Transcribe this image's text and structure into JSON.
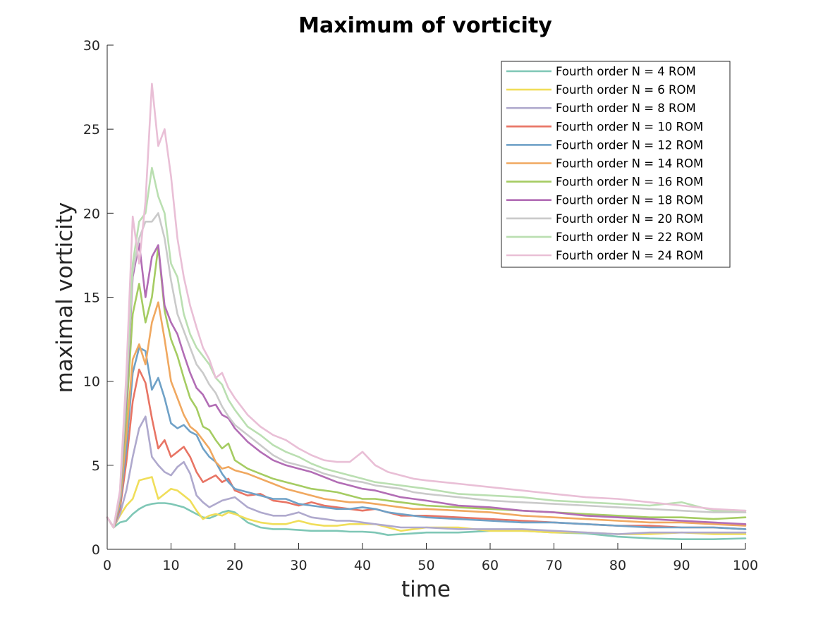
{
  "chart_data": {
    "type": "line",
    "title": "Maximum of vorticity",
    "xlabel": "time",
    "ylabel": "maximal vorticity",
    "xlim": [
      0,
      100
    ],
    "ylim": [
      0,
      30
    ],
    "xticks": [
      0,
      10,
      20,
      30,
      40,
      50,
      60,
      70,
      80,
      90,
      100
    ],
    "yticks": [
      0,
      5,
      10,
      15,
      20,
      25,
      30
    ],
    "grid": false,
    "legend_position": "top-right",
    "series": [
      {
        "name": "Fourth order N = 4 ROM",
        "color": "#7fc7b6",
        "x": [
          0,
          1,
          2,
          3,
          4,
          5,
          6,
          7,
          8,
          9,
          10,
          11,
          12,
          13,
          14,
          15,
          16,
          17,
          18,
          19,
          20,
          22,
          24,
          26,
          28,
          30,
          32,
          34,
          36,
          38,
          40,
          42,
          44,
          46,
          48,
          50,
          55,
          60,
          65,
          70,
          75,
          80,
          85,
          90,
          95,
          100
        ],
        "y": [
          1.9,
          1.3,
          1.6,
          1.7,
          2.1,
          2.4,
          2.6,
          2.7,
          2.75,
          2.75,
          2.7,
          2.6,
          2.5,
          2.3,
          2.1,
          1.9,
          1.85,
          2.0,
          2.2,
          2.3,
          2.2,
          1.6,
          1.3,
          1.2,
          1.2,
          1.15,
          1.1,
          1.1,
          1.1,
          1.05,
          1.05,
          1.0,
          0.85,
          0.9,
          0.95,
          1.0,
          1.0,
          1.1,
          1.1,
          1.0,
          0.95,
          0.75,
          0.65,
          0.6,
          0.6,
          0.65
        ]
      },
      {
        "name": "Fourth order N = 6 ROM",
        "color": "#f0de5a",
        "x": [
          0,
          1,
          2,
          3,
          4,
          5,
          6,
          7,
          8,
          9,
          10,
          11,
          12,
          13,
          14,
          15,
          16,
          17,
          18,
          19,
          20,
          22,
          24,
          26,
          28,
          30,
          32,
          34,
          36,
          38,
          40,
          42,
          44,
          46,
          48,
          50,
          55,
          60,
          65,
          70,
          75,
          80,
          85,
          90,
          95,
          100
        ],
        "y": [
          1.9,
          1.3,
          2.0,
          2.6,
          3.0,
          4.1,
          4.2,
          4.3,
          3.0,
          3.3,
          3.6,
          3.5,
          3.2,
          2.9,
          2.3,
          1.8,
          2.0,
          2.1,
          2.0,
          2.2,
          2.1,
          1.8,
          1.6,
          1.5,
          1.5,
          1.7,
          1.5,
          1.4,
          1.4,
          1.5,
          1.5,
          1.5,
          1.3,
          1.1,
          1.2,
          1.3,
          1.3,
          1.1,
          1.1,
          1.0,
          1.0,
          0.9,
          0.9,
          1.0,
          0.9,
          0.9
        ]
      },
      {
        "name": "Fourth order N = 8 ROM",
        "color": "#afa9cd",
        "x": [
          0,
          1,
          2,
          3,
          4,
          5,
          6,
          7,
          8,
          9,
          10,
          11,
          12,
          13,
          14,
          15,
          16,
          17,
          18,
          19,
          20,
          22,
          24,
          26,
          28,
          30,
          32,
          34,
          36,
          38,
          40,
          42,
          44,
          46,
          48,
          50,
          55,
          60,
          65,
          70,
          75,
          80,
          85,
          90,
          95,
          100
        ],
        "y": [
          1.9,
          1.3,
          2.1,
          3.5,
          5.5,
          7.2,
          7.9,
          5.5,
          5.0,
          4.6,
          4.4,
          4.9,
          5.2,
          4.5,
          3.2,
          2.8,
          2.5,
          2.7,
          2.9,
          3.0,
          3.1,
          2.5,
          2.2,
          2.0,
          2.0,
          2.2,
          1.9,
          1.8,
          1.7,
          1.7,
          1.6,
          1.5,
          1.4,
          1.3,
          1.3,
          1.3,
          1.2,
          1.2,
          1.2,
          1.1,
          1.0,
          0.9,
          1.0,
          1.0,
          1.0,
          1.0
        ]
      },
      {
        "name": "Fourth order N = 10 ROM",
        "color": "#e87464",
        "x": [
          0,
          1,
          2,
          3,
          4,
          5,
          6,
          7,
          8,
          9,
          10,
          11,
          12,
          13,
          14,
          15,
          16,
          17,
          18,
          19,
          20,
          22,
          24,
          26,
          28,
          30,
          32,
          34,
          36,
          38,
          40,
          42,
          44,
          46,
          48,
          50,
          55,
          60,
          65,
          70,
          75,
          80,
          85,
          90,
          95,
          100
        ],
        "y": [
          1.9,
          1.3,
          2.4,
          5.2,
          8.8,
          10.7,
          9.9,
          7.8,
          6.0,
          6.5,
          5.5,
          5.8,
          6.1,
          5.5,
          4.6,
          4.0,
          4.2,
          4.4,
          4.0,
          4.2,
          3.5,
          3.2,
          3.3,
          2.9,
          2.8,
          2.6,
          2.8,
          2.6,
          2.5,
          2.4,
          2.3,
          2.4,
          2.2,
          2.0,
          2.0,
          2.0,
          1.9,
          1.8,
          1.7,
          1.6,
          1.5,
          1.4,
          1.4,
          1.3,
          1.3,
          1.2
        ]
      },
      {
        "name": "Fourth order N = 12 ROM",
        "color": "#6fa1c7",
        "x": [
          0,
          1,
          2,
          3,
          4,
          5,
          6,
          7,
          8,
          9,
          10,
          11,
          12,
          13,
          14,
          15,
          16,
          17,
          18,
          19,
          20,
          22,
          24,
          26,
          28,
          30,
          32,
          34,
          36,
          38,
          40,
          42,
          44,
          46,
          48,
          50,
          55,
          60,
          65,
          70,
          75,
          80,
          85,
          90,
          95,
          100
        ],
        "y": [
          1.9,
          1.3,
          2.6,
          6.0,
          10.5,
          12.0,
          11.8,
          9.5,
          10.2,
          9.0,
          7.5,
          7.2,
          7.4,
          7.0,
          6.8,
          6.0,
          5.5,
          5.2,
          4.5,
          4.0,
          3.6,
          3.4,
          3.2,
          3.0,
          3.0,
          2.7,
          2.6,
          2.5,
          2.4,
          2.4,
          2.5,
          2.4,
          2.2,
          2.1,
          2.0,
          1.9,
          1.8,
          1.7,
          1.6,
          1.6,
          1.5,
          1.4,
          1.3,
          1.3,
          1.3,
          1.2
        ]
      },
      {
        "name": "Fourth order N = 14 ROM",
        "color": "#f0a860",
        "x": [
          0,
          1,
          2,
          3,
          4,
          5,
          6,
          7,
          8,
          9,
          10,
          11,
          12,
          13,
          14,
          15,
          16,
          17,
          18,
          19,
          20,
          22,
          24,
          26,
          28,
          30,
          32,
          34,
          36,
          38,
          40,
          42,
          44,
          46,
          48,
          50,
          55,
          60,
          65,
          70,
          75,
          80,
          85,
          90,
          95,
          100
        ],
        "y": [
          1.9,
          1.3,
          2.8,
          6.8,
          11.3,
          12.2,
          11.0,
          13.5,
          14.7,
          12.5,
          10.0,
          9.0,
          8.0,
          7.3,
          7.0,
          6.5,
          6.0,
          5.2,
          4.8,
          4.9,
          4.7,
          4.5,
          4.2,
          3.9,
          3.6,
          3.4,
          3.2,
          3.0,
          2.9,
          2.8,
          2.8,
          2.7,
          2.6,
          2.5,
          2.4,
          2.4,
          2.3,
          2.2,
          2.0,
          1.9,
          1.8,
          1.7,
          1.6,
          1.6,
          1.5,
          1.4
        ]
      },
      {
        "name": "Fourth order N = 16 ROM",
        "color": "#a5cc62",
        "x": [
          0,
          1,
          2,
          3,
          4,
          5,
          6,
          7,
          8,
          9,
          10,
          11,
          12,
          13,
          14,
          15,
          16,
          17,
          18,
          19,
          20,
          22,
          24,
          26,
          28,
          30,
          32,
          34,
          36,
          38,
          40,
          42,
          44,
          46,
          48,
          50,
          55,
          60,
          65,
          70,
          75,
          80,
          85,
          90,
          95,
          100
        ],
        "y": [
          1.9,
          1.3,
          3.0,
          8.0,
          14.0,
          15.8,
          13.5,
          15.0,
          18.0,
          14.2,
          12.5,
          11.5,
          10.2,
          9.0,
          8.4,
          7.3,
          7.1,
          6.5,
          6.0,
          6.3,
          5.3,
          4.8,
          4.5,
          4.2,
          4.0,
          3.8,
          3.6,
          3.5,
          3.4,
          3.2,
          3.0,
          3.0,
          2.9,
          2.8,
          2.7,
          2.6,
          2.5,
          2.4,
          2.3,
          2.2,
          2.1,
          2.0,
          1.9,
          1.9,
          1.8,
          1.9
        ]
      },
      {
        "name": "Fourth order N = 18 ROM",
        "color": "#b26db5",
        "x": [
          0,
          1,
          2,
          3,
          4,
          5,
          6,
          7,
          8,
          9,
          10,
          11,
          12,
          13,
          14,
          15,
          16,
          17,
          18,
          19,
          20,
          22,
          24,
          26,
          28,
          30,
          32,
          34,
          36,
          38,
          40,
          42,
          44,
          46,
          48,
          50,
          55,
          60,
          65,
          70,
          75,
          80,
          85,
          90,
          95,
          100
        ],
        "y": [
          1.9,
          1.3,
          3.1,
          9.0,
          16.2,
          18.2,
          15.0,
          17.4,
          18.1,
          14.5,
          13.5,
          12.8,
          11.6,
          10.5,
          9.6,
          9.2,
          8.5,
          8.6,
          8.0,
          7.8,
          7.2,
          6.4,
          5.8,
          5.3,
          5.0,
          4.8,
          4.6,
          4.3,
          4.0,
          3.8,
          3.6,
          3.5,
          3.3,
          3.1,
          3.0,
          2.9,
          2.6,
          2.5,
          2.3,
          2.2,
          2.0,
          1.9,
          1.8,
          1.7,
          1.6,
          1.5
        ]
      },
      {
        "name": "Fourth order N = 20 ROM",
        "color": "#cacaca",
        "x": [
          0,
          1,
          2,
          3,
          4,
          5,
          6,
          7,
          8,
          9,
          10,
          11,
          12,
          13,
          14,
          15,
          16,
          17,
          18,
          19,
          20,
          22,
          24,
          26,
          28,
          30,
          32,
          34,
          36,
          38,
          40,
          42,
          44,
          46,
          48,
          50,
          55,
          60,
          65,
          70,
          75,
          80,
          85,
          90,
          95,
          100
        ],
        "y": [
          1.9,
          1.3,
          3.2,
          9.5,
          16.5,
          18.5,
          19.5,
          19.5,
          20.0,
          18.5,
          16.0,
          14.0,
          13.0,
          12.0,
          11.0,
          10.5,
          9.8,
          9.3,
          8.5,
          7.9,
          7.4,
          6.8,
          6.2,
          5.6,
          5.2,
          5.0,
          4.8,
          4.5,
          4.3,
          4.1,
          4.0,
          3.8,
          3.7,
          3.6,
          3.4,
          3.3,
          3.1,
          2.9,
          2.8,
          2.7,
          2.6,
          2.5,
          2.4,
          2.3,
          2.2,
          2.2
        ]
      },
      {
        "name": "Fourth order N = 22 ROM",
        "color": "#badfb1",
        "x": [
          0,
          1,
          2,
          3,
          4,
          5,
          6,
          7,
          8,
          9,
          10,
          11,
          12,
          13,
          14,
          15,
          16,
          17,
          18,
          19,
          20,
          22,
          24,
          26,
          28,
          30,
          32,
          34,
          36,
          38,
          40,
          42,
          44,
          46,
          48,
          50,
          55,
          60,
          65,
          70,
          75,
          80,
          85,
          90,
          95,
          100
        ],
        "y": [
          1.9,
          1.3,
          3.4,
          10.0,
          17.0,
          19.5,
          20.0,
          22.7,
          21.0,
          20.0,
          17.0,
          16.2,
          14.0,
          12.8,
          12.0,
          11.5,
          11.0,
          10.2,
          9.8,
          8.9,
          8.3,
          7.3,
          6.8,
          6.2,
          5.8,
          5.5,
          5.1,
          4.8,
          4.6,
          4.4,
          4.2,
          4.0,
          3.9,
          3.8,
          3.7,
          3.6,
          3.3,
          3.2,
          3.1,
          2.9,
          2.8,
          2.7,
          2.6,
          2.8,
          2.3,
          2.3
        ]
      },
      {
        "name": "Fourth order N = 24 ROM",
        "color": "#e9bfd6",
        "x": [
          0,
          1,
          2,
          3,
          4,
          5,
          6,
          7,
          8,
          9,
          10,
          11,
          12,
          13,
          14,
          15,
          16,
          17,
          18,
          19,
          20,
          22,
          24,
          26,
          28,
          30,
          32,
          34,
          36,
          38,
          40,
          42,
          44,
          46,
          48,
          50,
          55,
          60,
          65,
          70,
          75,
          80,
          85,
          90,
          95,
          100
        ],
        "y": [
          1.9,
          1.3,
          3.5,
          10.5,
          19.8,
          17.0,
          20.7,
          27.7,
          24.0,
          25.0,
          22.2,
          18.5,
          16.2,
          14.5,
          13.2,
          12.0,
          11.3,
          10.2,
          10.5,
          9.6,
          9.0,
          8.0,
          7.3,
          6.8,
          6.5,
          6.0,
          5.6,
          5.3,
          5.2,
          5.2,
          5.8,
          5.0,
          4.6,
          4.4,
          4.2,
          4.1,
          3.9,
          3.7,
          3.5,
          3.3,
          3.1,
          3.0,
          2.8,
          2.6,
          2.4,
          2.3
        ]
      }
    ]
  }
}
